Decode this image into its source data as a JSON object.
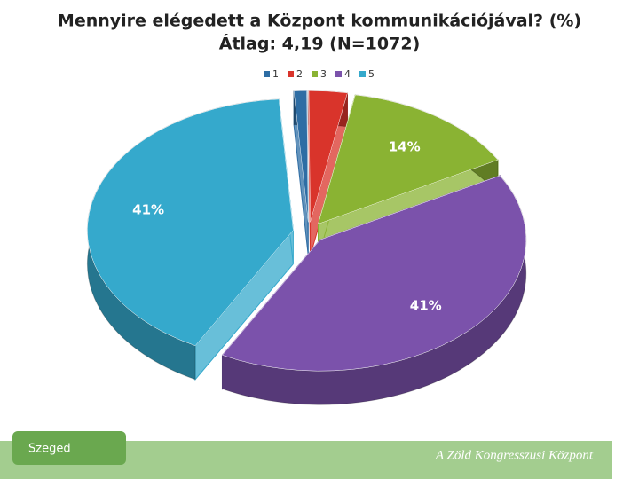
{
  "chart_data": {
    "type": "pie",
    "title": "Mennyire elégedett a Központ kommunikációjával? (%)",
    "subtitle": "Átlag: 4,19 (N=1072)",
    "categories": [
      "1",
      "2",
      "3",
      "4",
      "5"
    ],
    "values": [
      1,
      3,
      14,
      41,
      41
    ],
    "value_labels": [
      null,
      null,
      "14%",
      "41%",
      "41%"
    ],
    "colors": [
      "#2e6da4",
      "#d9342b",
      "#8ab333",
      "#7b52ab",
      "#35a9cc"
    ],
    "legend": "top"
  },
  "footer": {
    "logo": "Szeged",
    "caption": "A Zöld Kongresszusi Központ"
  }
}
